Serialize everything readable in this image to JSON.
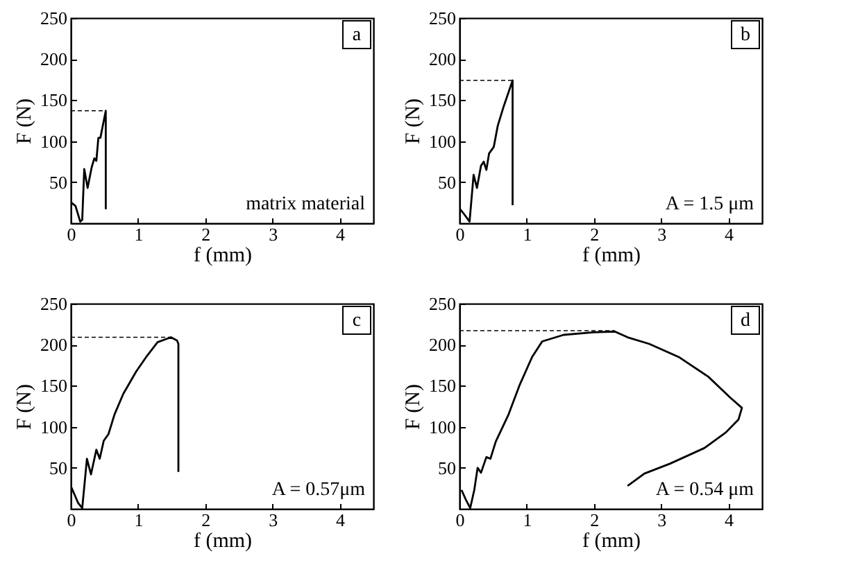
{
  "chart_data": [
    {
      "type": "line",
      "xlabel": "f  (mm)",
      "ylabel": "F  (N)",
      "xlim": [
        0,
        4.5
      ],
      "ylim": [
        0,
        250
      ],
      "xticks": [
        0,
        1,
        2,
        3,
        4
      ],
      "yticks": [
        50,
        100,
        150,
        200,
        250
      ],
      "grid": false,
      "legend": false,
      "annotations": [
        "a",
        "matrix material"
      ],
      "series": [
        {
          "color": "#000000",
          "line_style": "solid",
          "x": [
            0.01,
            0.07,
            0.14,
            0.17,
            0.2,
            0.25,
            0.31,
            0.35,
            0.38,
            0.41,
            0.44,
            0.52,
            0.52
          ],
          "values": [
            25,
            21,
            2,
            4,
            66,
            43,
            68,
            79,
            76,
            104,
            104,
            137,
            17
          ]
        },
        {
          "color": "#000000",
          "line_style": "dashed",
          "x": [
            0,
            0.52
          ],
          "values": [
            137,
            137
          ]
        }
      ]
    },
    {
      "type": "line",
      "xlabel": "f  (mm)",
      "ylabel": "F  (N)",
      "xlim": [
        0,
        4.5
      ],
      "ylim": [
        0,
        250
      ],
      "xticks": [
        0,
        1,
        2,
        3,
        4
      ],
      "yticks": [
        50,
        100,
        150,
        200,
        250
      ],
      "grid": false,
      "legend": false,
      "annotations": [
        "b",
        "A = 1.5 μm"
      ],
      "series": [
        {
          "color": "#000000",
          "line_style": "solid",
          "x": [
            0.01,
            0.06,
            0.15,
            0.21,
            0.26,
            0.32,
            0.36,
            0.4,
            0.44,
            0.51,
            0.57,
            0.66,
            0.79,
            0.79
          ],
          "values": [
            17,
            12,
            2,
            59,
            43,
            70,
            75,
            65,
            85,
            93,
            119,
            143,
            174,
            22
          ]
        },
        {
          "color": "#000000",
          "line_style": "dashed",
          "x": [
            0,
            0.79
          ],
          "values": [
            174,
            174
          ]
        }
      ]
    },
    {
      "type": "line",
      "xlabel": "f  (mm)",
      "ylabel": "F  (N)",
      "xlim": [
        0,
        4.5
      ],
      "ylim": [
        0,
        250
      ],
      "xticks": [
        0,
        1,
        2,
        3,
        4
      ],
      "yticks": [
        50,
        100,
        150,
        200,
        250
      ],
      "grid": false,
      "legend": false,
      "annotations": [
        "c",
        "A = 0.57μm"
      ],
      "series": [
        {
          "color": "#000000",
          "line_style": "solid",
          "x": [
            0.01,
            0.11,
            0.17,
            0.24,
            0.3,
            0.38,
            0.43,
            0.49,
            0.56,
            0.65,
            0.78,
            0.97,
            1.13,
            1.29,
            1.49,
            1.58,
            1.6,
            1.6
          ],
          "values": [
            26,
            7,
            1,
            61,
            42,
            72,
            61,
            83,
            91,
            115,
            140,
            167,
            186,
            203,
            209,
            205,
            201,
            45
          ]
        },
        {
          "color": "#000000",
          "line_style": "dashed",
          "x": [
            0,
            1.49
          ],
          "values": [
            209,
            209
          ]
        }
      ]
    },
    {
      "type": "line",
      "xlabel": "f  (mm)",
      "ylabel": "F  (N)",
      "xlim": [
        0,
        4.5
      ],
      "ylim": [
        0,
        250
      ],
      "xticks": [
        0,
        1,
        2,
        3,
        4
      ],
      "yticks": [
        50,
        100,
        150,
        200,
        250
      ],
      "grid": false,
      "legend": false,
      "annotations": [
        "d",
        "A = 0.54 μm"
      ],
      "series": [
        {
          "color": "#000000",
          "line_style": "solid",
          "x": [
            0.03,
            0.09,
            0.16,
            0.22,
            0.27,
            0.32,
            0.4,
            0.46,
            0.54,
            0.73,
            0.89,
            1.08,
            1.23,
            1.55,
            1.99,
            2.31,
            2.5,
            2.82,
            3.26,
            3.7,
            4.02,
            4.2,
            4.15,
            3.96,
            3.64,
            3.13,
            2.75,
            2.5
          ],
          "values": [
            23,
            12,
            1,
            23,
            50,
            44,
            63,
            61,
            82,
            115,
            150,
            185,
            204,
            212,
            215,
            216,
            209,
            201,
            185,
            161,
            136,
            123,
            109,
            93,
            74,
            55,
            43,
            28
          ]
        },
        {
          "color": "#000000",
          "line_style": "dashed",
          "x": [
            0,
            2.31
          ],
          "values": [
            217,
            217
          ]
        }
      ]
    }
  ]
}
